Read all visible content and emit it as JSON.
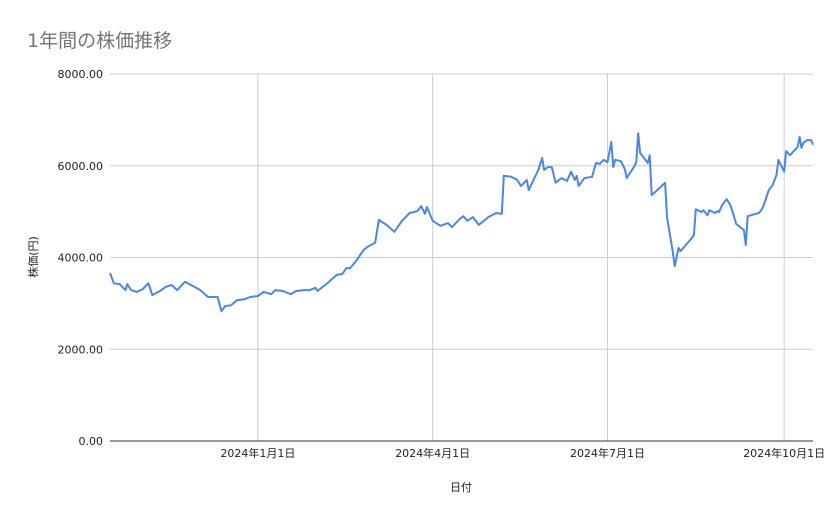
{
  "chart_data": {
    "type": "line",
    "title": "1年間の株価推移",
    "xlabel": "日付",
    "ylabel": "株価(円)",
    "ylim": [
      0,
      8000
    ],
    "xlim": [
      "2023-10-16",
      "2024-10-16"
    ],
    "y_ticks": [
      "0.00",
      "2000.00",
      "4000.00",
      "6000.00",
      "8000.00"
    ],
    "x_ticks": [
      {
        "date": "2024-01-01",
        "label": "2024年1月1日"
      },
      {
        "date": "2024-04-01",
        "label": "2024年4月1日"
      },
      {
        "date": "2024-07-01",
        "label": "2024年7月1日"
      },
      {
        "date": "2024-10-01",
        "label": "2024年10月1日"
      }
    ],
    "grid": true,
    "line_color": "#4a86e8",
    "series": [
      {
        "points": [
          [
            "2023-10-16",
            3660
          ],
          [
            "2023-10-18",
            3440
          ],
          [
            "2023-10-21",
            3420
          ],
          [
            "2023-10-24",
            3290
          ],
          [
            "2023-10-25",
            3420
          ],
          [
            "2023-10-27",
            3290
          ],
          [
            "2023-10-30",
            3250
          ],
          [
            "2023-11-02",
            3310
          ],
          [
            "2023-11-05",
            3440
          ],
          [
            "2023-11-07",
            3180
          ],
          [
            "2023-11-11",
            3270
          ],
          [
            "2023-11-14",
            3360
          ],
          [
            "2023-11-17",
            3400
          ],
          [
            "2023-11-20",
            3290
          ],
          [
            "2023-11-24",
            3470
          ],
          [
            "2023-11-29",
            3360
          ],
          [
            "2023-12-02",
            3290
          ],
          [
            "2023-12-06",
            3140
          ],
          [
            "2023-12-11",
            3140
          ],
          [
            "2023-12-13",
            2830
          ],
          [
            "2023-12-15",
            2940
          ],
          [
            "2023-12-18",
            2960
          ],
          [
            "2023-12-21",
            3070
          ],
          [
            "2023-12-25",
            3090
          ],
          [
            "2023-12-28",
            3140
          ],
          [
            "2024-01-01",
            3160
          ],
          [
            "2024-01-04",
            3250
          ],
          [
            "2024-01-08",
            3200
          ],
          [
            "2024-01-10",
            3290
          ],
          [
            "2024-01-14",
            3270
          ],
          [
            "2024-01-18",
            3200
          ],
          [
            "2024-01-21",
            3270
          ],
          [
            "2024-01-25",
            3290
          ],
          [
            "2024-01-28",
            3290
          ],
          [
            "2024-01-31",
            3340
          ],
          [
            "2024-02-01",
            3270
          ],
          [
            "2024-02-05",
            3400
          ],
          [
            "2024-02-07",
            3470
          ],
          [
            "2024-02-11",
            3620
          ],
          [
            "2024-02-14",
            3640
          ],
          [
            "2024-02-16",
            3770
          ],
          [
            "2024-02-18",
            3770
          ],
          [
            "2024-02-21",
            3920
          ],
          [
            "2024-02-25",
            4160
          ],
          [
            "2024-02-27",
            4230
          ],
          [
            "2024-03-02",
            4320
          ],
          [
            "2024-03-04",
            4820
          ],
          [
            "2024-03-08",
            4710
          ],
          [
            "2024-03-12",
            4560
          ],
          [
            "2024-03-16",
            4800
          ],
          [
            "2024-03-20",
            4970
          ],
          [
            "2024-03-24",
            5010
          ],
          [
            "2024-03-26",
            5120
          ],
          [
            "2024-03-28",
            4950
          ],
          [
            "2024-03-29",
            5100
          ],
          [
            "2024-04-01",
            4800
          ],
          [
            "2024-04-05",
            4690
          ],
          [
            "2024-04-09",
            4750
          ],
          [
            "2024-04-11",
            4660
          ],
          [
            "2024-04-15",
            4840
          ],
          [
            "2024-04-17",
            4900
          ],
          [
            "2024-04-19",
            4800
          ],
          [
            "2024-04-22",
            4880
          ],
          [
            "2024-04-25",
            4710
          ],
          [
            "2024-04-30",
            4880
          ],
          [
            "2024-05-04",
            4970
          ],
          [
            "2024-05-07",
            4950
          ],
          [
            "2024-05-08",
            5780
          ],
          [
            "2024-05-12",
            5760
          ],
          [
            "2024-05-15",
            5690
          ],
          [
            "2024-05-17",
            5560
          ],
          [
            "2024-05-20",
            5690
          ],
          [
            "2024-05-21",
            5470
          ],
          [
            "2024-05-26",
            5910
          ],
          [
            "2024-05-28",
            6170
          ],
          [
            "2024-05-29",
            5910
          ],
          [
            "2024-05-31",
            5970
          ],
          [
            "2024-06-02",
            5970
          ],
          [
            "2024-06-04",
            5630
          ],
          [
            "2024-06-07",
            5730
          ],
          [
            "2024-06-10",
            5670
          ],
          [
            "2024-06-12",
            5870
          ],
          [
            "2024-06-14",
            5690
          ],
          [
            "2024-06-15",
            5780
          ],
          [
            "2024-06-16",
            5560
          ],
          [
            "2024-06-19",
            5730
          ],
          [
            "2024-06-23",
            5760
          ],
          [
            "2024-06-25",
            6060
          ],
          [
            "2024-06-27",
            6040
          ],
          [
            "2024-06-29",
            6130
          ],
          [
            "2024-07-01",
            6080
          ],
          [
            "2024-07-03",
            6520
          ],
          [
            "2024-07-04",
            5970
          ],
          [
            "2024-07-05",
            6130
          ],
          [
            "2024-07-08",
            6100
          ],
          [
            "2024-07-10",
            5930
          ],
          [
            "2024-07-11",
            5730
          ],
          [
            "2024-07-15",
            5990
          ],
          [
            "2024-07-16",
            6080
          ],
          [
            "2024-07-17",
            6710
          ],
          [
            "2024-07-18",
            6280
          ],
          [
            "2024-07-20",
            6170
          ],
          [
            "2024-07-22",
            6060
          ],
          [
            "2024-07-23",
            6230
          ],
          [
            "2024-07-24",
            5360
          ],
          [
            "2024-07-28",
            5510
          ],
          [
            "2024-07-31",
            5630
          ],
          [
            "2024-08-01",
            4880
          ],
          [
            "2024-08-04",
            4120
          ],
          [
            "2024-08-05",
            3810
          ],
          [
            "2024-08-07",
            4210
          ],
          [
            "2024-08-08",
            4140
          ],
          [
            "2024-08-13",
            4380
          ],
          [
            "2024-08-15",
            4490
          ],
          [
            "2024-08-16",
            5050
          ],
          [
            "2024-08-19",
            4990
          ],
          [
            "2024-08-20",
            5030
          ],
          [
            "2024-08-22",
            4920
          ],
          [
            "2024-08-23",
            5030
          ],
          [
            "2024-08-26",
            4970
          ],
          [
            "2024-08-27",
            5010
          ],
          [
            "2024-08-28",
            4990
          ],
          [
            "2024-08-30",
            5160
          ],
          [
            "2024-09-01",
            5270
          ],
          [
            "2024-09-03",
            5140
          ],
          [
            "2024-09-05",
            4880
          ],
          [
            "2024-09-06",
            4730
          ],
          [
            "2024-09-10",
            4600
          ],
          [
            "2024-09-11",
            4270
          ],
          [
            "2024-09-12",
            4900
          ],
          [
            "2024-09-16",
            4950
          ],
          [
            "2024-09-18",
            4970
          ],
          [
            "2024-09-20",
            5100
          ],
          [
            "2024-09-23",
            5470
          ],
          [
            "2024-09-25",
            5580
          ],
          [
            "2024-09-27",
            5800
          ],
          [
            "2024-09-28",
            6130
          ],
          [
            "2024-10-01",
            5870
          ],
          [
            "2024-10-02",
            6320
          ],
          [
            "2024-10-04",
            6230
          ],
          [
            "2024-10-06",
            6320
          ],
          [
            "2024-10-08",
            6410
          ],
          [
            "2024-10-09",
            6630
          ],
          [
            "2024-10-10",
            6390
          ],
          [
            "2024-10-11",
            6500
          ],
          [
            "2024-10-13",
            6560
          ],
          [
            "2024-10-15",
            6560
          ],
          [
            "2024-10-16",
            6460
          ]
        ]
      }
    ]
  }
}
